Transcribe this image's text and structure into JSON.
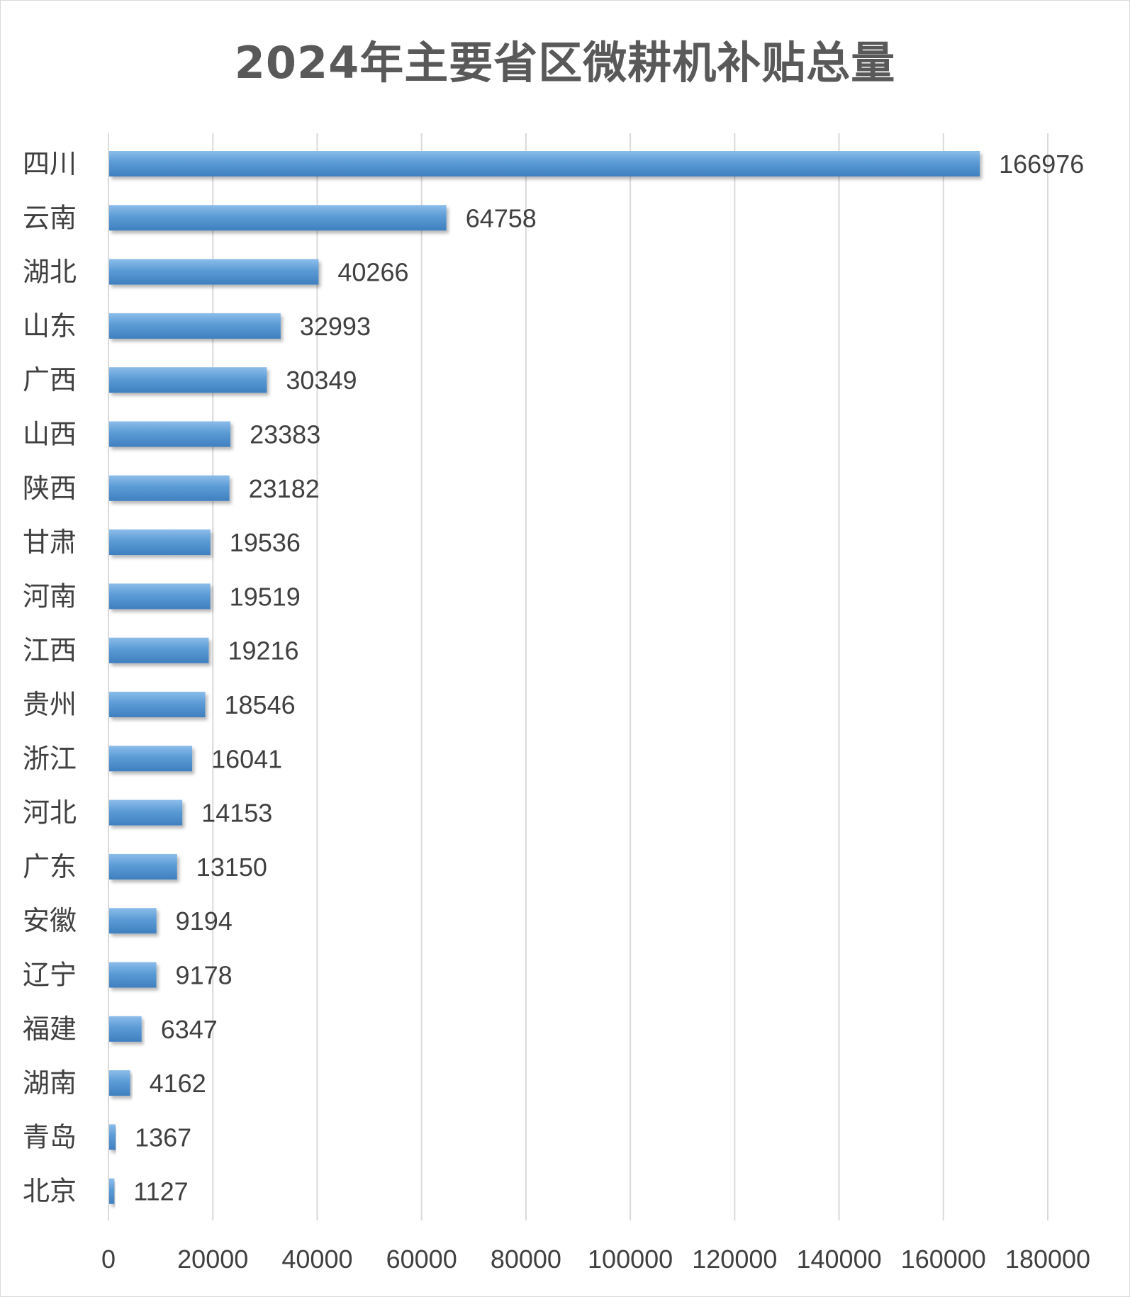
{
  "chart_data": {
    "type": "bar",
    "orientation": "horizontal",
    "title": "2024年主要省区微耕机补贴总量",
    "xlabel": "",
    "ylabel": "",
    "categories": [
      "四川",
      "云南",
      "湖北",
      "山东",
      "广西",
      "山西",
      "陕西",
      "甘肃",
      "河南",
      "江西",
      "贵州",
      "浙江",
      "河北",
      "广东",
      "安徽",
      "辽宁",
      "福建",
      "湖南",
      "青岛",
      "北京"
    ],
    "values": [
      166976,
      64758,
      40266,
      32993,
      30349,
      23383,
      23182,
      19536,
      19519,
      19216,
      18546,
      16041,
      14153,
      13150,
      9194,
      9178,
      6347,
      4162,
      1367,
      1127
    ],
    "xlim": [
      0,
      180000
    ],
    "xticks": [
      0,
      20000,
      40000,
      60000,
      80000,
      100000,
      120000,
      140000,
      160000,
      180000
    ],
    "grid": "vertical",
    "legend": "none",
    "data_labels": true,
    "colors": {
      "bar": "#5b9bd5",
      "bar_light": "#78b0e2",
      "bar_dark": "#3f82c2",
      "grid": "#d9d9d9",
      "text": "#404040",
      "title": "#595959"
    }
  }
}
